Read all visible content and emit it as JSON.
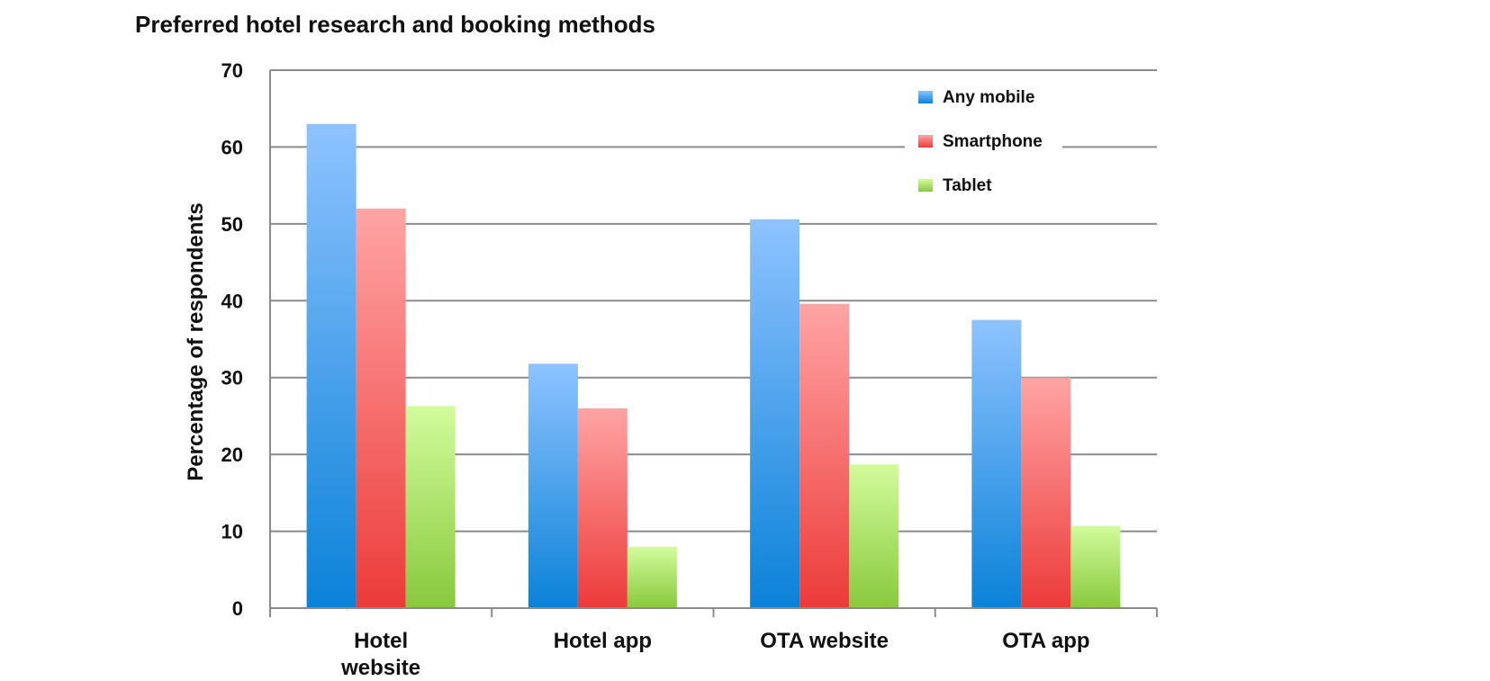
{
  "chart_data": {
    "type": "bar",
    "title": "Preferred hotel research and booking methods",
    "xlabel": "",
    "ylabel": "Percentage of respondents",
    "ylim": [
      0,
      70
    ],
    "yticks": [
      "0",
      "10",
      "20",
      "30",
      "40",
      "50",
      "60",
      "70"
    ],
    "grid": true,
    "legend_position": "top-right",
    "categories": [
      [
        "Hotel",
        "website"
      ],
      [
        "Hotel app"
      ],
      [
        "OTA website"
      ],
      [
        "OTA app"
      ]
    ],
    "series": [
      {
        "name": "Any mobile",
        "values": [
          63,
          31.8,
          50.6,
          37.5
        ],
        "color_light": "#8ec3ff",
        "color_dark": "#0a82d8"
      },
      {
        "name": "Smartphone",
        "values": [
          52,
          26,
          39.6,
          30
        ],
        "color_light": "#ffa4a4",
        "color_dark": "#ec3b39"
      },
      {
        "name": "Tablet",
        "values": [
          26.3,
          8,
          18.7,
          10.7
        ],
        "color_light": "#d2fc9c",
        "color_dark": "#88c93c"
      }
    ]
  }
}
